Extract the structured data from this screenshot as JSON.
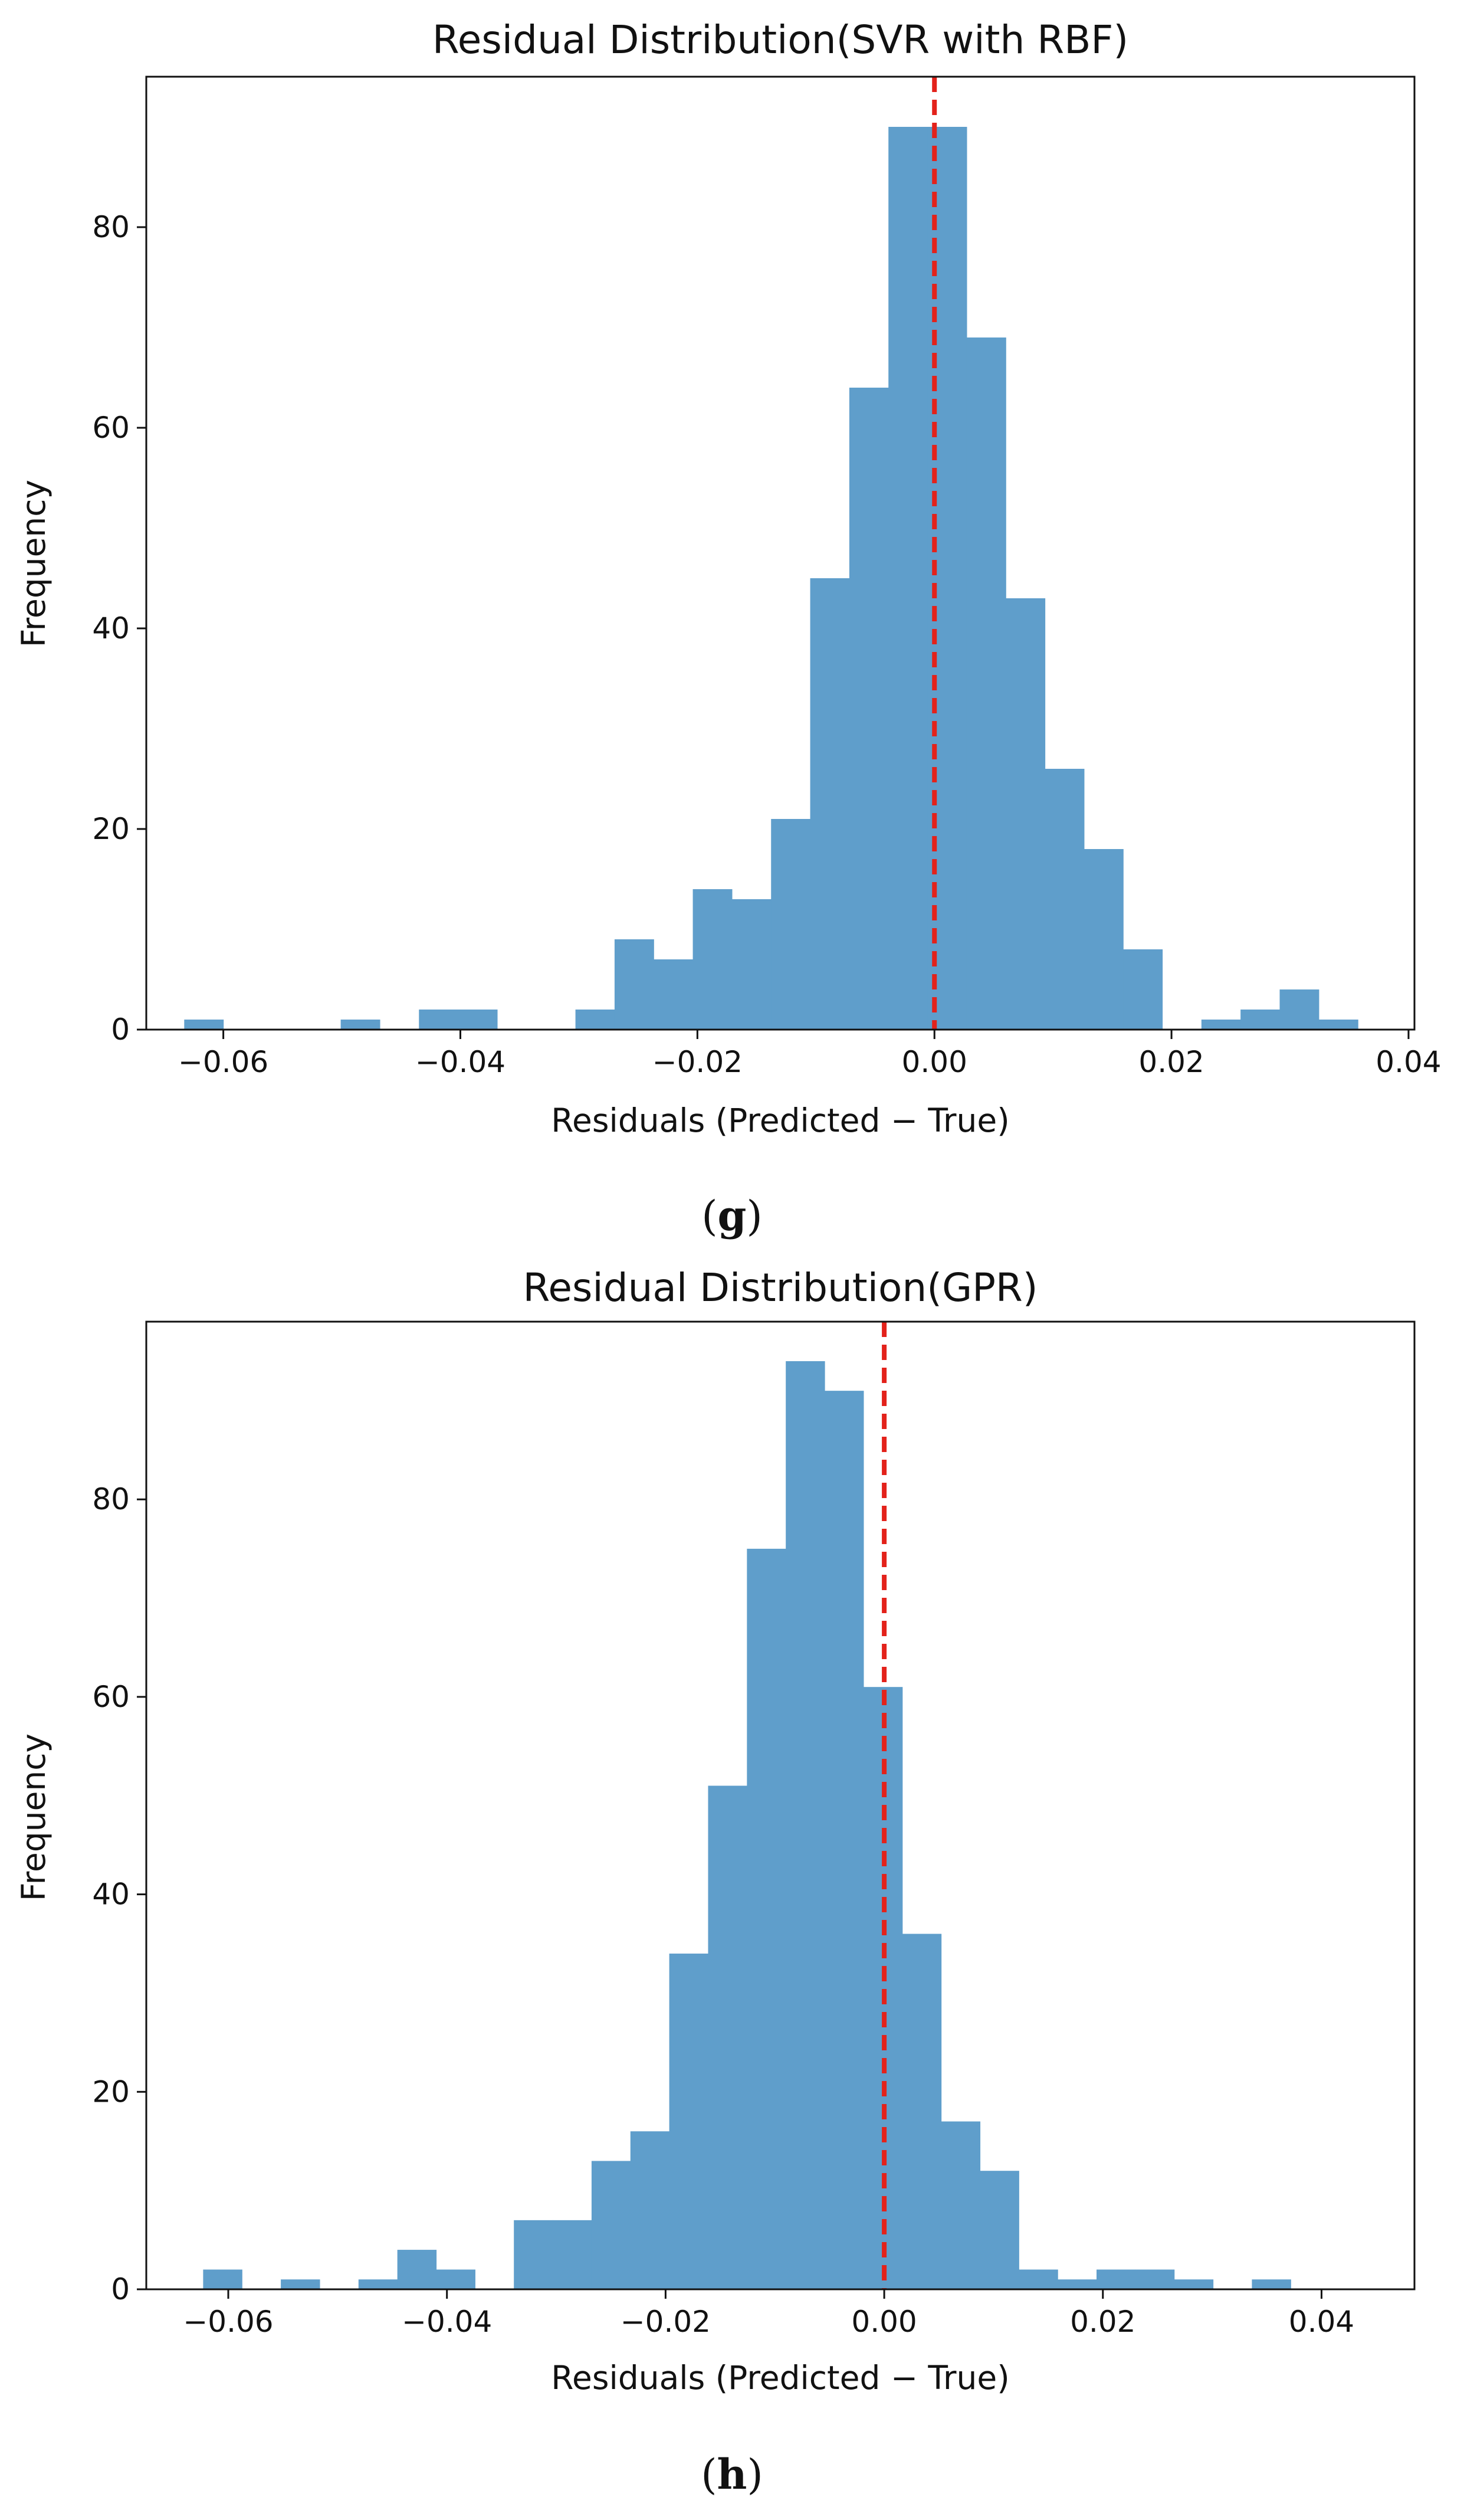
{
  "chart_data": [
    {
      "type": "bar",
      "title": "Residual Distribution(SVR with RBF)",
      "xlabel": "Residuals (Predicted − True)",
      "ylabel": "Frequency",
      "caption": "g",
      "xlim": [
        -0.0665,
        0.0405
      ],
      "ylim": [
        0,
        95
      ],
      "xticks": [
        -0.06,
        -0.04,
        -0.02,
        0.0,
        0.02,
        0.04
      ],
      "xtick_labels": [
        "−0.06",
        "−0.04",
        "−0.02",
        "0.00",
        "0.02",
        "0.04"
      ],
      "yticks": [
        0,
        20,
        40,
        60,
        80
      ],
      "ytick_labels": [
        "0",
        "20",
        "40",
        "60",
        "80"
      ],
      "bin_start": -0.0633,
      "bin_width": 0.003301,
      "values": [
        1,
        0,
        0,
        0,
        1,
        0,
        2,
        2,
        0,
        0,
        2,
        9,
        7,
        14,
        13,
        21,
        45,
        64,
        90,
        90,
        69,
        43,
        26,
        18,
        8,
        0,
        1,
        2,
        4,
        1
      ],
      "reference_line_x": 0.0,
      "bar_color": "#5f9ecb",
      "line_color": "#e3221b"
    },
    {
      "type": "bar",
      "title": "Residual Distribution(GPR)",
      "xlabel": "Residuals (Predicted − True)",
      "ylabel": "Frequency",
      "caption": "h",
      "xlim": [
        -0.0675,
        0.0485
      ],
      "ylim": [
        0,
        98
      ],
      "xticks": [
        -0.06,
        -0.04,
        -0.02,
        0.0,
        0.02,
        0.04
      ],
      "xtick_labels": [
        "−0.06",
        "−0.04",
        "−0.02",
        "0.00",
        "0.02",
        "0.04"
      ],
      "yticks": [
        0,
        20,
        40,
        60,
        80
      ],
      "ytick_labels": [
        "0",
        "20",
        "40",
        "60",
        "80"
      ],
      "bin_start": -0.0623,
      "bin_width": 0.003553,
      "values": [
        2,
        0,
        1,
        0,
        1,
        4,
        2,
        0,
        7,
        7,
        13,
        16,
        34,
        51,
        75,
        94,
        91,
        61,
        36,
        17,
        12,
        2,
        1,
        2,
        2,
        1,
        0,
        1
      ],
      "reference_line_x": 0.0,
      "bar_color": "#5f9ecb",
      "line_color": "#e3221b"
    }
  ]
}
